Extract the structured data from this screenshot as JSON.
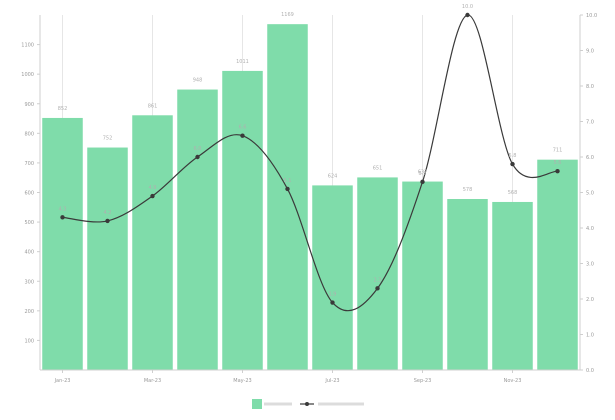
{
  "chart_data": {
    "type": "bar",
    "categories": [
      "Jan-23",
      "Feb-23",
      "Mar-23",
      "Apr-23",
      "May-23",
      "Jun-23",
      "Jul-23",
      "Aug-23",
      "Sep-23",
      "Oct-23",
      "Nov-23",
      "Dec-23"
    ],
    "x_tick_labels": [
      "Jan-23",
      "Mar-23",
      "May-23",
      "Jul-23",
      "Sep-23",
      "Nov-23"
    ],
    "series": [
      {
        "name": "",
        "type": "bar",
        "axis": "left",
        "color": "#7fdcaa",
        "values": [
          852,
          752,
          861,
          948,
          1011,
          1169,
          624,
          651,
          637,
          578,
          568,
          711
        ]
      },
      {
        "name": "",
        "type": "line",
        "axis": "right",
        "color": "#3a3a3a",
        "values": [
          4.3,
          4.2,
          4.9,
          6.0,
          6.6,
          5.1,
          1.9,
          2.3,
          5.3,
          10.0,
          5.8,
          5.6
        ]
      }
    ],
    "y_left": {
      "min": 0,
      "max": 1200,
      "ticks": [
        100,
        200,
        300,
        400,
        500,
        600,
        700,
        800,
        900,
        1000,
        1100
      ]
    },
    "y_right": {
      "min": 0,
      "max": 10,
      "ticks": [
        0,
        1,
        2,
        3,
        4,
        5,
        6,
        7,
        8,
        9,
        10
      ]
    },
    "bar_labels": [
      "852",
      "752",
      "861",
      "948",
      "1011",
      "1169",
      "624",
      "651",
      "637",
      "578",
      "568",
      "711"
    ],
    "line_labels": [
      "4.3",
      "4.2",
      "4.9",
      "6.0",
      "6.6",
      "5.1",
      "1.9",
      "2.3",
      "5.3",
      "10.0",
      "5.8",
      "5.6"
    ],
    "grid": "vertical",
    "legend": {
      "position": "bottom-center"
    }
  }
}
